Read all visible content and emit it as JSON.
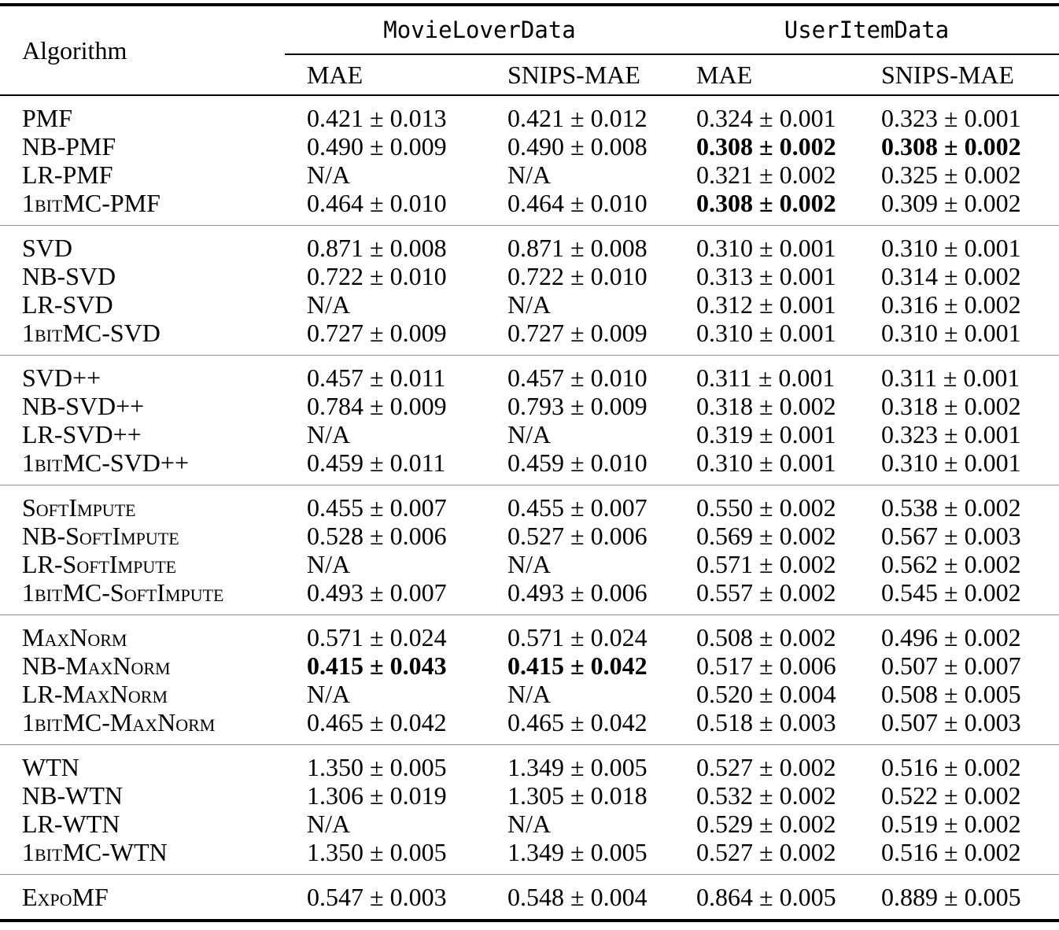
{
  "table": {
    "header": {
      "algorithm_label": "Algorithm",
      "dataset_groups": [
        {
          "label": "MovieLoverData",
          "metrics": [
            "MAE",
            "SNIPS-MAE"
          ]
        },
        {
          "label": "UserItemData",
          "metrics": [
            "MAE",
            "SNIPS-MAE"
          ]
        }
      ]
    },
    "groups": [
      {
        "rows": [
          {
            "algorithm": "PMF",
            "values": [
              {
                "v": "0.421 ± 0.013"
              },
              {
                "v": "0.421 ± 0.012"
              },
              {
                "v": "0.324 ± 0.001"
              },
              {
                "v": "0.323 ± 0.001"
              }
            ]
          },
          {
            "algorithm": "NB-PMF",
            "values": [
              {
                "v": "0.490 ± 0.009"
              },
              {
                "v": "0.490 ± 0.008"
              },
              {
                "v": "0.308 ± 0.002",
                "bold": true
              },
              {
                "v": "0.308 ± 0.002",
                "bold": true
              }
            ]
          },
          {
            "algorithm": "LR-PMF",
            "values": [
              {
                "v": "N/A"
              },
              {
                "v": "N/A"
              },
              {
                "v": "0.321 ± 0.002"
              },
              {
                "v": "0.325 ± 0.002"
              }
            ]
          },
          {
            "algorithm": "1bitMC-PMF",
            "values": [
              {
                "v": "0.464 ± 0.010"
              },
              {
                "v": "0.464 ± 0.010"
              },
              {
                "v": "0.308 ± 0.002",
                "bold": true
              },
              {
                "v": "0.309 ± 0.002"
              }
            ]
          }
        ]
      },
      {
        "rows": [
          {
            "algorithm": "SVD",
            "values": [
              {
                "v": "0.871 ± 0.008"
              },
              {
                "v": "0.871 ± 0.008"
              },
              {
                "v": "0.310 ± 0.001"
              },
              {
                "v": "0.310 ± 0.001"
              }
            ]
          },
          {
            "algorithm": "NB-SVD",
            "values": [
              {
                "v": "0.722 ± 0.010"
              },
              {
                "v": "0.722 ± 0.010"
              },
              {
                "v": "0.313 ± 0.001"
              },
              {
                "v": "0.314 ± 0.002"
              }
            ]
          },
          {
            "algorithm": "LR-SVD",
            "values": [
              {
                "v": "N/A"
              },
              {
                "v": "N/A"
              },
              {
                "v": "0.312 ± 0.001"
              },
              {
                "v": "0.316 ± 0.002"
              }
            ]
          },
          {
            "algorithm": "1bitMC-SVD",
            "values": [
              {
                "v": "0.727 ± 0.009"
              },
              {
                "v": "0.727 ± 0.009"
              },
              {
                "v": "0.310 ± 0.001"
              },
              {
                "v": "0.310 ± 0.001"
              }
            ]
          }
        ]
      },
      {
        "rows": [
          {
            "algorithm": "SVD++",
            "values": [
              {
                "v": "0.457 ± 0.011"
              },
              {
                "v": "0.457 ± 0.010"
              },
              {
                "v": "0.311 ± 0.001"
              },
              {
                "v": "0.311 ± 0.001"
              }
            ]
          },
          {
            "algorithm": "NB-SVD++",
            "values": [
              {
                "v": "0.784 ± 0.009"
              },
              {
                "v": "0.793 ± 0.009"
              },
              {
                "v": "0.318 ± 0.002"
              },
              {
                "v": "0.318 ± 0.002"
              }
            ]
          },
          {
            "algorithm": "LR-SVD++",
            "values": [
              {
                "v": "N/A"
              },
              {
                "v": "N/A"
              },
              {
                "v": "0.319 ± 0.001"
              },
              {
                "v": "0.323 ± 0.001"
              }
            ]
          },
          {
            "algorithm": "1bitMC-SVD++",
            "values": [
              {
                "v": "0.459 ± 0.011"
              },
              {
                "v": "0.459 ± 0.010"
              },
              {
                "v": "0.310 ± 0.001"
              },
              {
                "v": "0.310 ± 0.001"
              }
            ]
          }
        ]
      },
      {
        "rows": [
          {
            "algorithm": "SoftImpute",
            "values": [
              {
                "v": "0.455 ± 0.007"
              },
              {
                "v": "0.455 ± 0.007"
              },
              {
                "v": "0.550 ± 0.002"
              },
              {
                "v": "0.538 ± 0.002"
              }
            ]
          },
          {
            "algorithm": "NB-SoftImpute",
            "values": [
              {
                "v": "0.528 ± 0.006"
              },
              {
                "v": "0.527 ± 0.006"
              },
              {
                "v": "0.569 ± 0.002"
              },
              {
                "v": "0.567 ± 0.003"
              }
            ]
          },
          {
            "algorithm": "LR-SoftImpute",
            "values": [
              {
                "v": "N/A"
              },
              {
                "v": "N/A"
              },
              {
                "v": "0.571 ± 0.002"
              },
              {
                "v": "0.562 ± 0.002"
              }
            ]
          },
          {
            "algorithm": "1bitMC-SoftImpute",
            "values": [
              {
                "v": "0.493 ± 0.007"
              },
              {
                "v": "0.493 ± 0.006"
              },
              {
                "v": "0.557 ± 0.002"
              },
              {
                "v": "0.545 ± 0.002"
              }
            ]
          }
        ]
      },
      {
        "rows": [
          {
            "algorithm": "MaxNorm",
            "values": [
              {
                "v": "0.571 ± 0.024"
              },
              {
                "v": "0.571 ± 0.024"
              },
              {
                "v": "0.508 ± 0.002"
              },
              {
                "v": "0.496 ± 0.002"
              }
            ]
          },
          {
            "algorithm": "NB-MaxNorm",
            "values": [
              {
                "v": "0.415 ± 0.043",
                "bold": true
              },
              {
                "v": "0.415 ± 0.042",
                "bold": true
              },
              {
                "v": "0.517 ± 0.006"
              },
              {
                "v": "0.507 ± 0.007"
              }
            ]
          },
          {
            "algorithm": "LR-MaxNorm",
            "values": [
              {
                "v": "N/A"
              },
              {
                "v": "N/A"
              },
              {
                "v": "0.520 ± 0.004"
              },
              {
                "v": "0.508 ± 0.005"
              }
            ]
          },
          {
            "algorithm": "1bitMC-MaxNorm",
            "values": [
              {
                "v": "0.465 ± 0.042"
              },
              {
                "v": "0.465 ± 0.042"
              },
              {
                "v": "0.518 ± 0.003"
              },
              {
                "v": "0.507 ± 0.003"
              }
            ]
          }
        ]
      },
      {
        "rows": [
          {
            "algorithm": "WTN",
            "values": [
              {
                "v": "1.350 ± 0.005"
              },
              {
                "v": "1.349 ± 0.005"
              },
              {
                "v": "0.527 ± 0.002"
              },
              {
                "v": "0.516 ± 0.002"
              }
            ]
          },
          {
            "algorithm": "NB-WTN",
            "values": [
              {
                "v": "1.306 ± 0.019"
              },
              {
                "v": "1.305 ± 0.018"
              },
              {
                "v": "0.532 ± 0.002"
              },
              {
                "v": "0.522 ± 0.002"
              }
            ]
          },
          {
            "algorithm": "LR-WTN",
            "values": [
              {
                "v": "N/A"
              },
              {
                "v": "N/A"
              },
              {
                "v": "0.529 ± 0.002"
              },
              {
                "v": "0.519 ± 0.002"
              }
            ]
          },
          {
            "algorithm": "1bitMC-WTN",
            "values": [
              {
                "v": "1.350 ± 0.005"
              },
              {
                "v": "1.349 ± 0.005"
              },
              {
                "v": "0.527 ± 0.002"
              },
              {
                "v": "0.516 ± 0.002"
              }
            ]
          }
        ]
      },
      {
        "rows": [
          {
            "algorithm": "ExpoMF",
            "values": [
              {
                "v": "0.547 ± 0.003"
              },
              {
                "v": "0.548 ± 0.004"
              },
              {
                "v": "0.864 ± 0.005"
              },
              {
                "v": "0.889 ± 0.005"
              }
            ]
          }
        ]
      }
    ]
  }
}
